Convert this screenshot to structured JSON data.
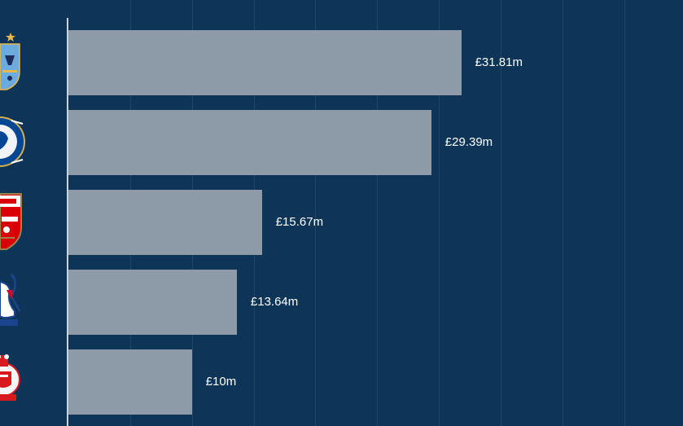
{
  "chart_data": {
    "type": "bar",
    "orientation": "horizontal",
    "grid": true,
    "categories": [
      {
        "crest_icon": "manchester-city-crest-icon",
        "label": "£31.81m"
      },
      {
        "crest_icon": "chelsea-crest-icon",
        "label": "£29.39m"
      },
      {
        "crest_icon": "arsenal-crest-icon",
        "label": "£15.67m"
      },
      {
        "crest_icon": "crystal-palace-crest-icon",
        "label": "£13.64m"
      },
      {
        "crest_icon": "southampton-crest-icon",
        "label": "£10m"
      }
    ],
    "values": [
      31.81,
      29.39,
      15.67,
      13.64,
      10
    ],
    "value_unit": "£m",
    "xlim": [
      0,
      50
    ],
    "colors": {
      "background": "#0e3557",
      "bar": "#8d9ba8",
      "label": "#ffffff",
      "grid": "#3a5a78"
    }
  }
}
